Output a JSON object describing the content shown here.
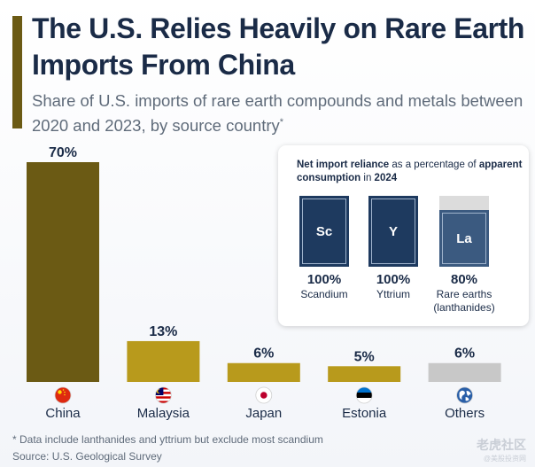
{
  "header": {
    "title": "The U.S. Relies Heavily on Rare Earth Imports From China",
    "subtitle": "Share of U.S. imports of rare earth compounds and metals between 2020 and 2023, by source country",
    "subtitle_mark": "*"
  },
  "chart_data": {
    "type": "bar",
    "categories": [
      "China",
      "Malaysia",
      "Japan",
      "Estonia",
      "Others"
    ],
    "values": [
      70,
      13,
      6,
      5,
      6
    ],
    "value_labels": [
      "70%",
      "13%",
      "6%",
      "5%",
      "6%"
    ],
    "unit": "%",
    "ylim": [
      0,
      70
    ],
    "grid": false,
    "colors": [
      "#6b5a14",
      "#b89a1c",
      "#b89a1c",
      "#b89a1c",
      "#c8c8c8"
    ],
    "category_icons": [
      "china-flag-icon",
      "malaysia-flag-icon",
      "japan-flag-icon",
      "estonia-flag-icon",
      "globe-icon"
    ]
  },
  "inset": {
    "title_bold_1": "Net import reliance",
    "title_regular_1": " as a percentage of ",
    "title_bold_2": "apparent consumption",
    "title_regular_2": " in ",
    "title_bold_3": "2024",
    "elements": [
      {
        "symbol": "Sc",
        "value": 100,
        "label": "100%",
        "name": "Scandium"
      },
      {
        "symbol": "Y",
        "value": 100,
        "label": "100%",
        "name": "Yttrium"
      },
      {
        "symbol": "La",
        "value": 80,
        "label": "80%",
        "name": "Rare earths (lanthanides)"
      }
    ],
    "colors": {
      "fill": "#1e3a5f",
      "fill_partial": "#3b5a80",
      "empty": "#dcdcdc"
    }
  },
  "footer": {
    "footnote": "* Data include lanthanides and yttrium but exclude most scandium",
    "source": "Source: U.S. Geological Survey"
  },
  "watermark": {
    "main": "老虎社区",
    "sub": "@美股投资网"
  }
}
